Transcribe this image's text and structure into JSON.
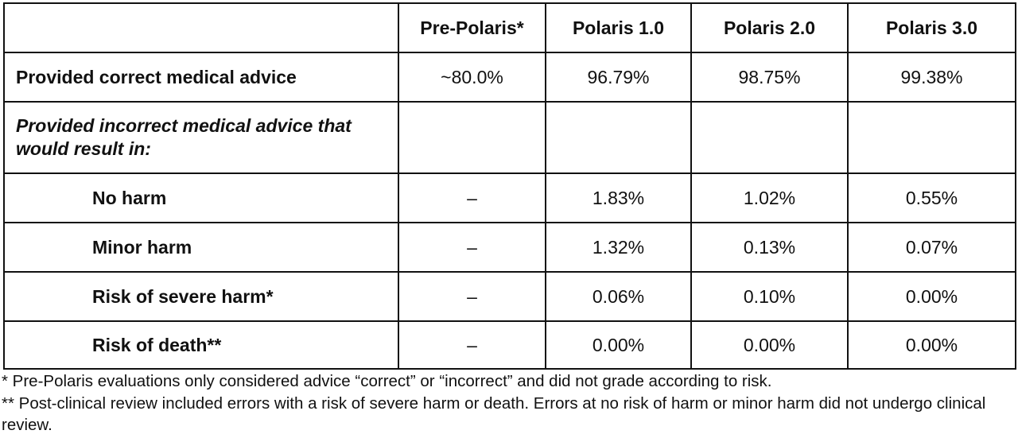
{
  "table": {
    "columns": [
      "Pre-Polaris*",
      "Polaris 1.0",
      "Polaris 2.0",
      "Polaris 3.0"
    ],
    "rows": [
      {
        "label": "Provided correct medical advice",
        "values": [
          "~80.0%",
          "96.79%",
          "98.75%",
          "99.38%"
        ]
      },
      {
        "label": "Provided incorrect medical advice that would result in:"
      },
      {
        "label": "No harm",
        "values": [
          "–",
          "1.83%",
          "1.02%",
          "0.55%"
        ]
      },
      {
        "label": "Minor harm",
        "values": [
          "–",
          "1.32%",
          "0.13%",
          "0.07%"
        ]
      },
      {
        "label": "Risk of severe harm*",
        "values": [
          "–",
          "0.06%",
          "0.10%",
          "0.00%"
        ]
      },
      {
        "label": "Risk of death**",
        "values": [
          "–",
          "0.00%",
          "0.00%",
          "0.00%"
        ]
      }
    ]
  },
  "footnotes": [
    "* Pre-Polaris evaluations only considered advice “correct” or “incorrect” and did not grade according to risk.",
    "** Post-clinical review included errors with a risk of severe harm or death.  Errors at no risk of harm or minor harm did not undergo clinical review."
  ]
}
